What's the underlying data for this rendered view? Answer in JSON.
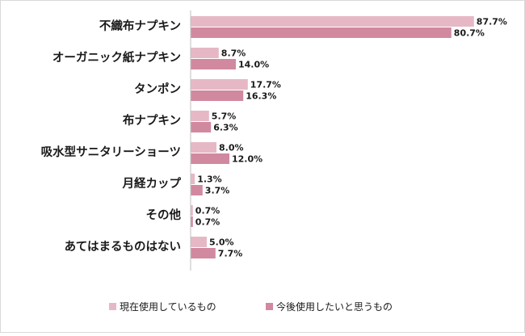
{
  "chart_data": {
    "type": "bar",
    "orientation": "horizontal",
    "title": "",
    "xlabel": "",
    "ylabel": "",
    "xlim": [
      0,
      100
    ],
    "grid": false,
    "legend_position": "bottom",
    "categories": [
      "不織布ナプキン",
      "オーガニック紙ナプキン",
      "タンポン",
      "布ナプキン",
      "吸水型サニタリーショーツ",
      "月経カップ",
      "その他",
      "あてはまるものはない"
    ],
    "series": [
      {
        "name": "現在使用しているもの",
        "color": "#e6b8c6",
        "values": [
          87.7,
          8.7,
          17.7,
          5.7,
          8.0,
          1.3,
          0.7,
          5.0
        ],
        "labels": [
          "87.7%",
          "8.7%",
          "17.7%",
          "5.7%",
          "8.0%",
          "1.3%",
          "0.7%",
          "5.0%"
        ]
      },
      {
        "name": "今後使用したいと思うもの",
        "color": "#d1899f",
        "values": [
          80.7,
          14.0,
          16.3,
          6.3,
          12.0,
          3.7,
          0.7,
          7.7
        ],
        "labels": [
          "80.7%",
          "14.0%",
          "16.3%",
          "6.3%",
          "12.0%",
          "3.7%",
          "0.7%",
          "7.7%"
        ]
      }
    ]
  }
}
